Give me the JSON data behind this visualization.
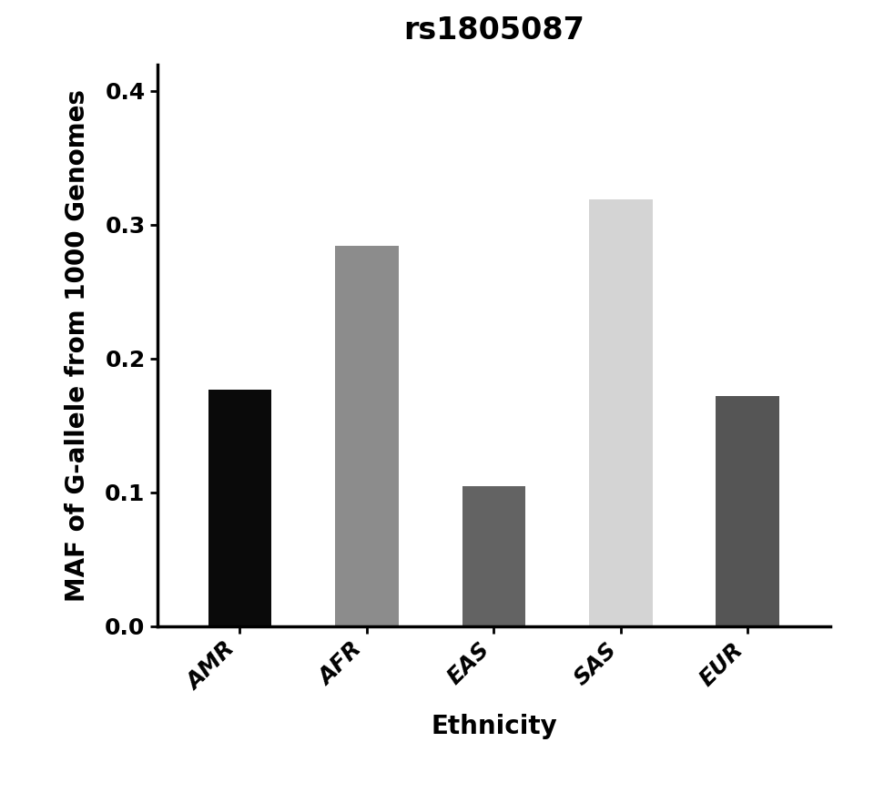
{
  "categories": [
    "AMR",
    "AFR",
    "EAS",
    "SAS",
    "EUR"
  ],
  "values": [
    0.177,
    0.284,
    0.105,
    0.319,
    0.172
  ],
  "bar_colors": [
    "#0a0a0a",
    "#8c8c8c",
    "#636363",
    "#d4d4d4",
    "#555555"
  ],
  "title": "rs1805087",
  "xlabel": "Ethnicity",
  "ylabel": "MAF of G-allele from 1000 Genomes",
  "ylim": [
    0,
    0.42
  ],
  "yticks": [
    0.0,
    0.1,
    0.2,
    0.3,
    0.4
  ],
  "title_fontsize": 24,
  "label_fontsize": 20,
  "tick_fontsize": 18,
  "bar_width": 0.5,
  "background_color": "#ffffff",
  "spine_linewidth": 2.5
}
